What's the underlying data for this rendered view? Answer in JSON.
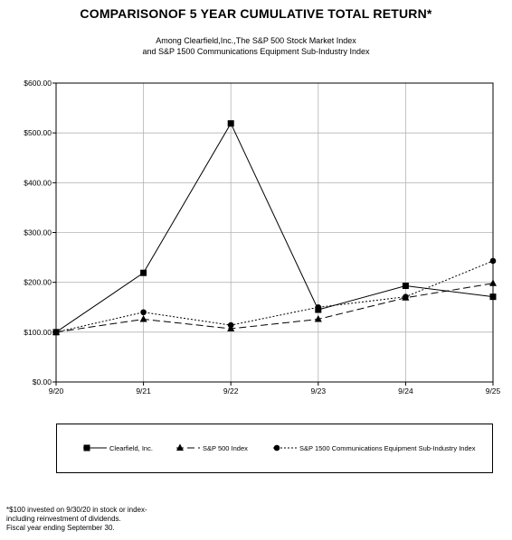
{
  "header": {
    "title": "COMPARISONOF 5 YEAR CUMULATIVE TOTAL RETURN*",
    "subtitle_line1": "Among Clearfield,Inc.,The  S&P 500 Stock Market Index",
    "subtitle_line2": "and S&P 1500  Communications Equipment Sub-Industry  Index"
  },
  "footnote": {
    "line1": "*$100 invested on 9/30/20 in stock or index-",
    "line2": "including reinvestment of dividends.",
    "line3": "Fiscal year ending September 30."
  },
  "chart_data": {
    "type": "line",
    "x": [
      "9/20",
      "9/21",
      "9/22",
      "9/23",
      "9/24",
      "9/25"
    ],
    "ylim": [
      0,
      600
    ],
    "yticks": [
      "$0.00",
      "$100.00",
      "$200.00",
      "$300.00",
      "$400.00",
      "$500.00",
      "$600.00"
    ],
    "ytick_values": [
      0,
      100,
      200,
      300,
      400,
      500,
      600
    ],
    "grid": true,
    "legend_position": "bottom",
    "series": [
      {
        "name": "Clearfield, Inc.",
        "values": [
          100,
          219,
          519,
          145,
          193,
          171
        ],
        "marker": "square",
        "dash": "solid"
      },
      {
        "name": "S&P 500 Index",
        "values": [
          100,
          126,
          107,
          126,
          169,
          198
        ],
        "marker": "triangle",
        "dash": "long-dash"
      },
      {
        "name": "S&P 1500 Communications Equipment Sub-Industry Index",
        "values": [
          100,
          140,
          114,
          150,
          171,
          243
        ],
        "marker": "circle",
        "dash": "dotted"
      }
    ]
  }
}
